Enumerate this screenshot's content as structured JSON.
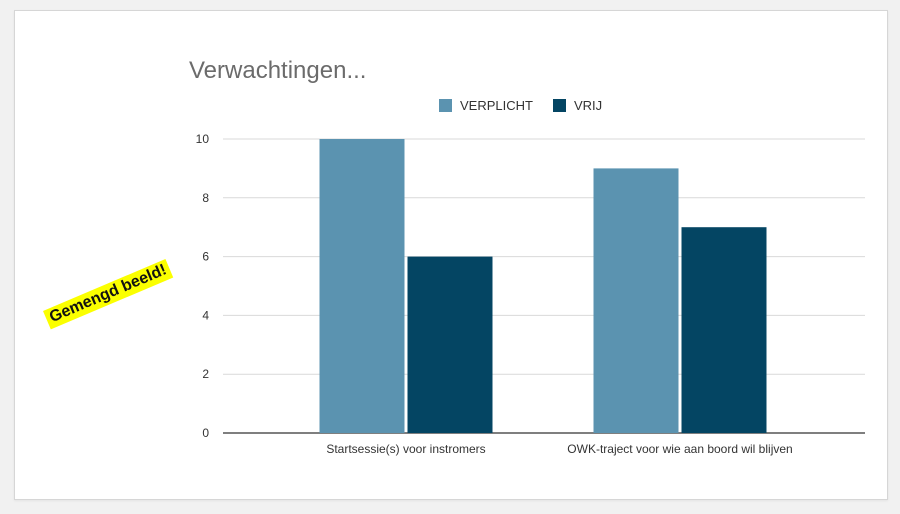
{
  "callout_text": "Gemengd beeld!",
  "chart_data": {
    "type": "bar",
    "title": "Verwachtingen...",
    "xlabel": "",
    "ylabel": "",
    "categories": [
      "Startsessie(s) voor instromers",
      "OWK-traject voor wie aan boord wil blijven"
    ],
    "series": [
      {
        "name": "VERPLICHT",
        "values": [
          10,
          9
        ],
        "color": "#5b93b0"
      },
      {
        "name": "VRIJ",
        "values": [
          6,
          7
        ],
        "color": "#044563"
      }
    ],
    "ylim": [
      0,
      10
    ],
    "yticks": [
      0,
      2,
      4,
      6,
      8,
      10
    ],
    "grid": true,
    "legend_position": "top"
  }
}
